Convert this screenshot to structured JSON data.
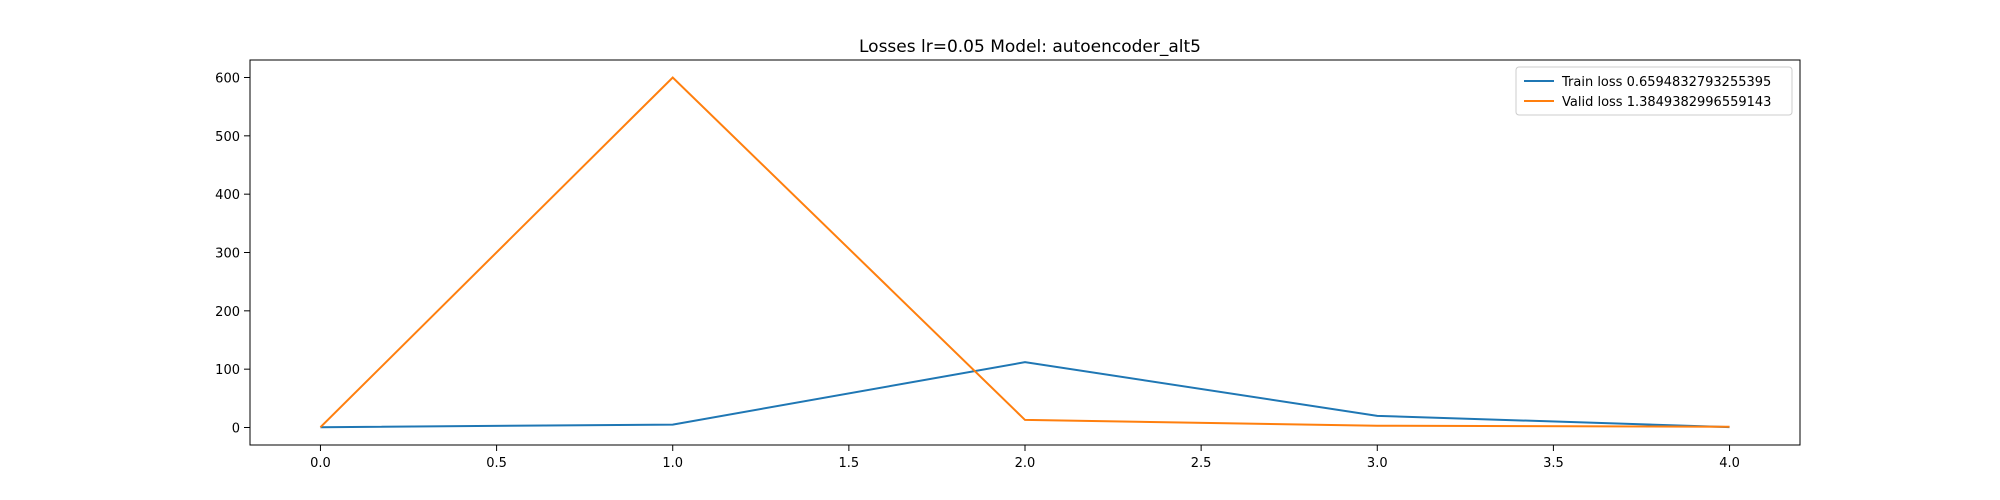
{
  "chart_data": {
    "type": "line",
    "title": "Losses lr=0.05 Model: autoencoder_alt5",
    "xlabel": "",
    "ylabel": "",
    "xlim": [
      -0.2,
      4.2
    ],
    "ylim": [
      -30,
      630
    ],
    "xticks": [
      0.0,
      0.5,
      1.0,
      1.5,
      2.0,
      2.5,
      3.0,
      3.5,
      4.0
    ],
    "xtick_labels": [
      "0.0",
      "0.5",
      "1.0",
      "1.5",
      "2.0",
      "2.5",
      "3.0",
      "3.5",
      "4.0"
    ],
    "yticks": [
      0,
      100,
      200,
      300,
      400,
      500,
      600
    ],
    "ytick_labels": [
      "0",
      "100",
      "200",
      "300",
      "400",
      "500",
      "600"
    ],
    "grid": false,
    "legend_position": "top-right",
    "x": [
      0,
      1,
      2,
      3,
      4
    ],
    "series": [
      {
        "name": "Train loss 0.6594832793255395",
        "color": "#1f77b4",
        "values": [
          0.5,
          5,
          112,
          20,
          0.66
        ]
      },
      {
        "name": "Valid loss 1.3849382996559143",
        "color": "#ff7f0e",
        "values": [
          0.5,
          600,
          13,
          3,
          1.38
        ]
      }
    ]
  }
}
